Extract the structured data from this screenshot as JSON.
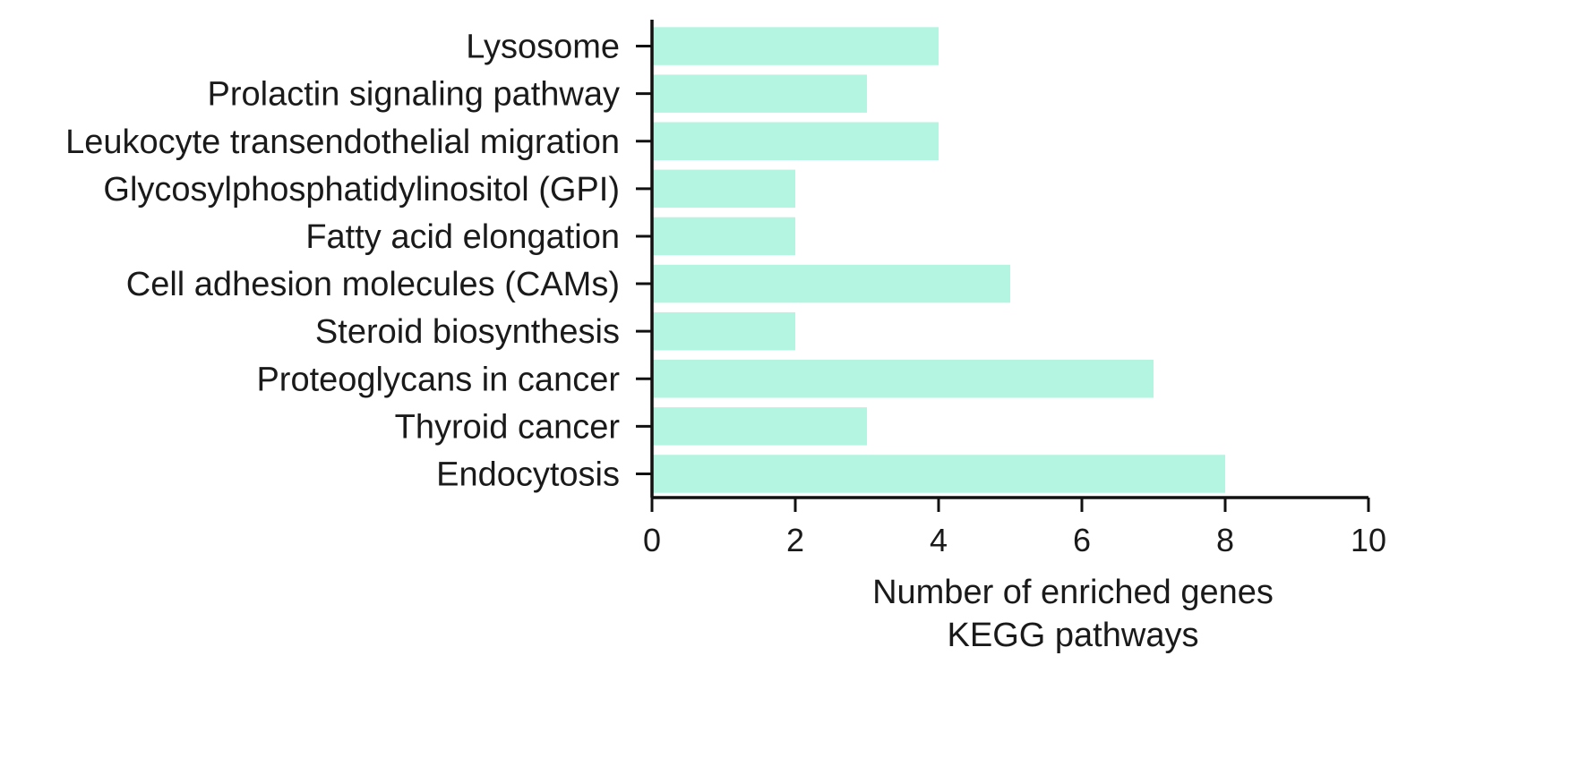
{
  "chart_data": {
    "type": "bar",
    "orientation": "horizontal",
    "categories": [
      "Lysosome",
      "Prolactin signaling pathway",
      "Leukocyte transendothelial migration",
      "Glycosylphosphatidylinositol (GPI)",
      "Fatty acid elongation",
      "Cell adhesion molecules (CAMs)",
      "Steroid biosynthesis",
      "Proteoglycans in cancer",
      "Thyroid cancer",
      "Endocytosis"
    ],
    "values": [
      4,
      3,
      4,
      2,
      2,
      5,
      2,
      7,
      3,
      8
    ],
    "xlabel": "Number of enriched genes",
    "subtitle": "KEGG pathways",
    "ylabel": "",
    "xlim": [
      0,
      10
    ],
    "xticks": [
      0,
      2,
      4,
      6,
      8,
      10
    ],
    "bar_color": "#b3f5e0",
    "grid": false
  }
}
